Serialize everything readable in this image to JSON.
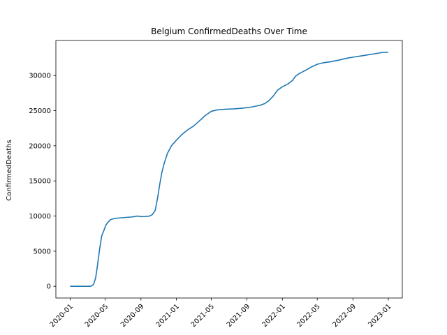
{
  "chart_data": {
    "type": "line",
    "title": "Belgium  ConfirmedDeaths Over Time",
    "xlabel": "",
    "ylabel": "ConfirmedDeaths",
    "xlim": [
      "2019-11-13",
      "2023-02-18"
    ],
    "ylim": [
      -1666,
      34989
    ],
    "x_ticks": [
      "2020-01",
      "2020-05",
      "2020-09",
      "2021-01",
      "2021-05",
      "2021-09",
      "2022-01",
      "2022-05",
      "2022-09",
      "2023-01"
    ],
    "y_ticks": [
      0,
      5000,
      10000,
      15000,
      20000,
      25000,
      30000
    ],
    "grid": false,
    "color": "#1f77b4",
    "series": [
      {
        "x": [
          "2020-01-01",
          "2020-03-10",
          "2020-03-15",
          "2020-03-22",
          "2020-03-29",
          "2020-04-05",
          "2020-04-12",
          "2020-04-19",
          "2020-04-26",
          "2020-05-03",
          "2020-05-10",
          "2020-05-20",
          "2020-06-01",
          "2020-06-15",
          "2020-07-01",
          "2020-07-15",
          "2020-08-01",
          "2020-08-20",
          "2020-09-01",
          "2020-09-03",
          "2020-09-15",
          "2020-10-01",
          "2020-10-10",
          "2020-10-20",
          "2020-10-28",
          "2020-11-05",
          "2020-11-12",
          "2020-11-20",
          "2020-12-01",
          "2020-12-15",
          "2021-01-01",
          "2021-01-20",
          "2021-02-10",
          "2021-03-01",
          "2021-03-20",
          "2021-04-10",
          "2021-05-01",
          "2021-05-20",
          "2021-06-15",
          "2021-07-15",
          "2021-08-15",
          "2021-09-15",
          "2021-10-15",
          "2021-11-01",
          "2021-11-15",
          "2021-12-01",
          "2021-12-15",
          "2022-01-01",
          "2022-01-20",
          "2022-02-05",
          "2022-02-15",
          "2022-03-01",
          "2022-03-20",
          "2022-04-10",
          "2022-05-01",
          "2022-05-20",
          "2022-06-15",
          "2022-07-15",
          "2022-08-15",
          "2022-09-15",
          "2022-10-15",
          "2022-11-15",
          "2022-12-15",
          "2023-01-01"
        ],
        "y": [
          0,
          0,
          50,
          300,
          1200,
          3200,
          5400,
          7200,
          7900,
          8700,
          9100,
          9500,
          9650,
          9720,
          9770,
          9820,
          9870,
          10000,
          9920,
          9920,
          9930,
          10000,
          10200,
          10800,
          12500,
          14600,
          16200,
          17500,
          18900,
          20000,
          20800,
          21600,
          22300,
          22800,
          23500,
          24300,
          24900,
          25100,
          25200,
          25250,
          25350,
          25500,
          25750,
          26000,
          26400,
          27100,
          27900,
          28400,
          28800,
          29300,
          29900,
          30300,
          30700,
          31200,
          31600,
          31800,
          31950,
          32200,
          32500,
          32700,
          32900,
          33100,
          33300,
          33300
        ]
      }
    ]
  }
}
